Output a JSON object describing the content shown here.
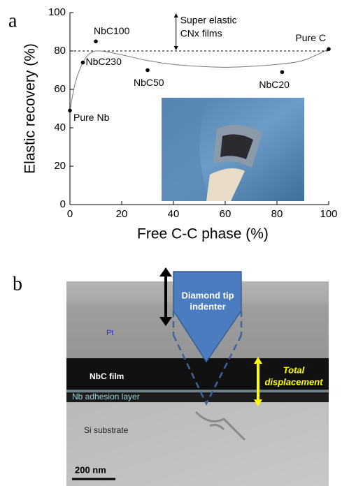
{
  "chart_data": {
    "type": "scatter",
    "panel_label": "a",
    "x_label": "Free C-C phase (%)",
    "y_label": "Elastic recovery (%)",
    "x": [
      0,
      5,
      10,
      30,
      82,
      100
    ],
    "values": [
      49,
      74,
      85,
      70,
      69,
      81
    ],
    "point_labels": [
      "Pure Nb",
      "NbC230",
      "NbC100",
      "NbC50",
      "NbC20",
      "Pure C"
    ],
    "color": "#000000",
    "fit": {
      "x": [
        0,
        2,
        5,
        8,
        12,
        20,
        30,
        40,
        50,
        60,
        70,
        80,
        90,
        100
      ],
      "values": [
        49,
        63,
        74,
        79,
        80,
        78,
        75,
        73,
        72,
        71.5,
        72,
        73,
        75,
        81
      ]
    },
    "reference_line": 80,
    "annotation": [
      "Super elastic",
      "CNx films"
    ],
    "annotation_x": 41,
    "xlim": [
      0,
      100
    ],
    "ylim": [
      0,
      100
    ],
    "xticks": [
      0,
      20,
      40,
      60,
      80,
      100
    ],
    "yticks": [
      0,
      20,
      40,
      60,
      80,
      100
    ]
  },
  "micrograph": {
    "panel_label": "b",
    "indenter": [
      "Diamond tip",
      "indenter"
    ],
    "layers": [
      "Pt",
      "NbC film",
      "Nb adhesion layer",
      "Si substrate"
    ],
    "displacement": [
      "Total",
      "displacement"
    ],
    "scale_bar": "200 nm"
  }
}
